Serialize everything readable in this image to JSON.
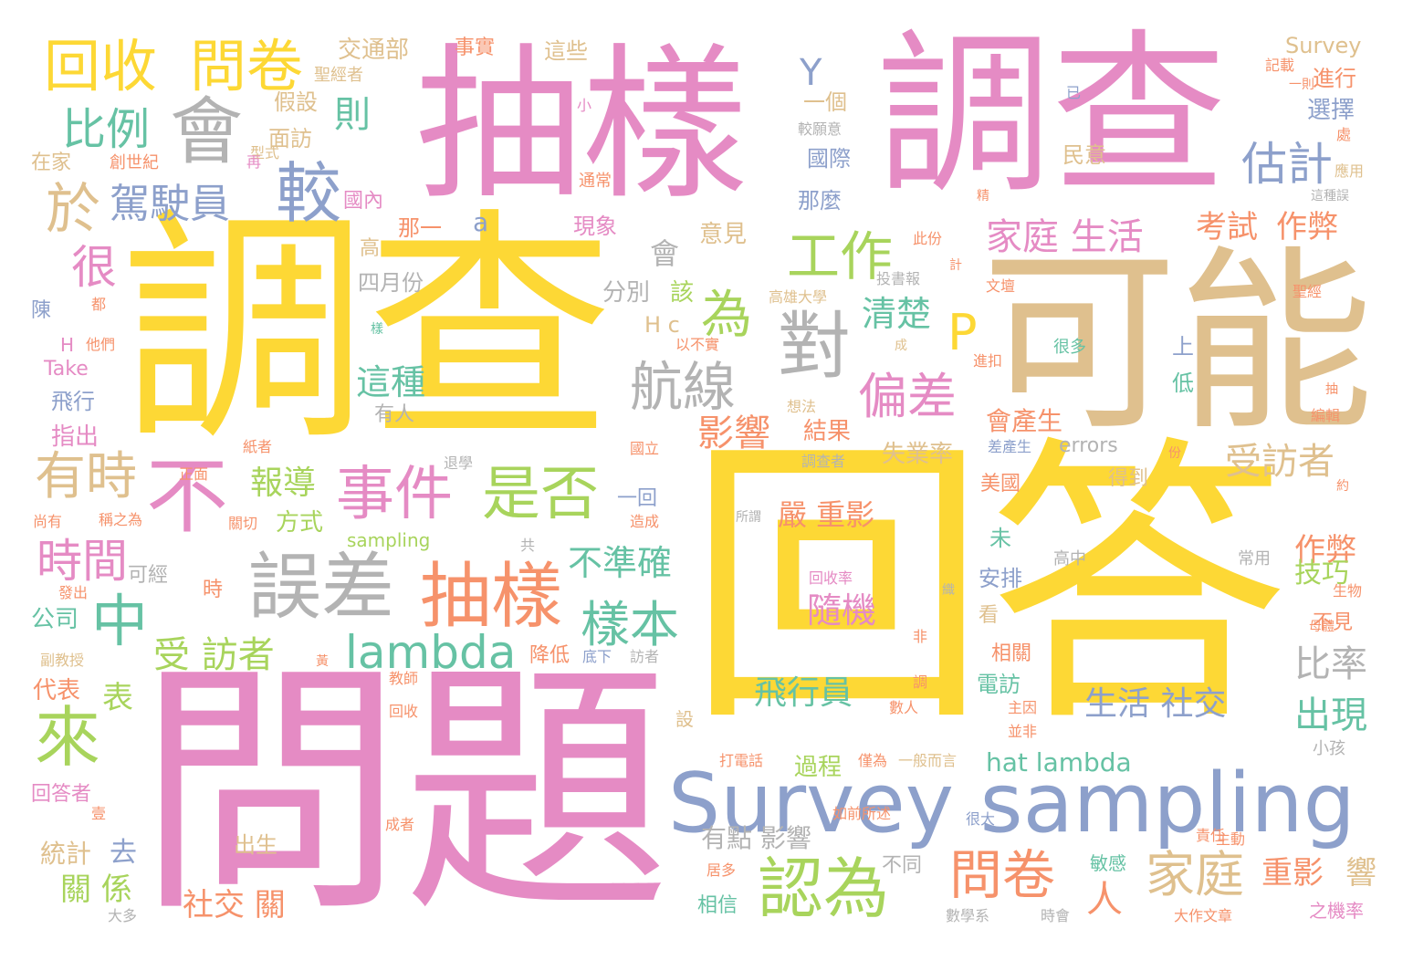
{
  "colors": {
    "pink": "#e58bc4",
    "yellow": "#fdd835",
    "tan": "#dfc08e",
    "orange": "#f6926b",
    "green": "#a8d45c",
    "teal": "#66c2a4",
    "blue": "#8da0cb",
    "gray": "#b3b3b3",
    "background": "#ffffff"
  },
  "words": {
    "w1": "調查",
    "w2": "回答",
    "w3": "問題",
    "w4": "抽樣",
    "w5": "調查",
    "w6": "可能",
    "w7": "Survey sampling",
    "w8": "回收",
    "w9": "問卷",
    "w10": "會",
    "w11": "比例",
    "w12": "駕駛員",
    "w13": "較",
    "w14": "於",
    "w15": "很",
    "w16": "有時",
    "w17": "不",
    "w18": "時間",
    "w19": "中",
    "w20": "來",
    "w21": "誤差",
    "w22": "抽樣",
    "w23": "事件",
    "w24": "是否",
    "w25": "lambda",
    "w26": "受 訪者",
    "w27": "樣本",
    "w28": "工作",
    "w29": "為",
    "w30": "對",
    "w31": "航線",
    "w32": "影響",
    "w33": "偏差",
    "w34": "P",
    "w35": "認為",
    "w36": "問卷",
    "w37": "家庭",
    "w38": "家庭 生活",
    "w39": "估計",
    "w40": "Y",
    "w41": "則",
    "w42": "清楚",
    "w43": "這種",
    "w44": "報導",
    "w45": "不準確",
    "w46": "受訪者",
    "w47": "比率",
    "w48": "出現",
    "w49": "生活 社交",
    "w50": "飛行員",
    "w51": "隨機",
    "w52": "嚴 重影",
    "w53": "hat lambda",
    "w54": "考試",
    "w55": "作弊",
    "w56": "作弊",
    "w57": "技巧",
    "w58": "結果",
    "w59": "會產生",
    "w60": "失業率",
    "w61": "errors",
    "w62": "社交 關",
    "w63": "重影",
    "w64": "響",
    "w65": "人",
    "w66": "有點 影響",
    "w67": "過程",
    "w68": "方式",
    "w69": "表",
    "w70": "關 係",
    "w71": "統計",
    "w72": "去",
    "w73": "回答者",
    "w74": "代表",
    "w75": "公司",
    "w76": "指出",
    "w77": "飛行",
    "w78": "Take",
    "w79": "陳",
    "w80": "H",
    "w81": "他們",
    "w82": "交通部",
    "w83": "聖經者",
    "w84": "假設",
    "w85": "面訪",
    "w86": "型式",
    "w87": "創世紀",
    "w88": "在家",
    "w89": "再",
    "w90": "國內",
    "w91": "那一",
    "w92": "a",
    "w93": "高",
    "w94": "四月份",
    "w95": "分別",
    "w96": "會",
    "w97": "H c",
    "w98": "該",
    "w99": "意見",
    "w100": "現象",
    "w101": "有人",
    "w102": "事實",
    "w103": "這些",
    "w104": "一個",
    "w105": "國際",
    "w106": "那麼",
    "w107": "民意",
    "w108": "Survey",
    "w109": "記載",
    "w110": "進行",
    "w111": "一則",
    "w112": "選擇",
    "w113": "已",
    "w114": "小",
    "w115": "較願意",
    "w116": "通常",
    "w117": "精",
    "w118": "這種誤",
    "w119": "應用",
    "w120": "處",
    "w121": "上",
    "w122": "低",
    "w123": "很多",
    "w124": "文壇",
    "w125": "聖經",
    "w126": "此份",
    "w127": "計",
    "w128": "投書報",
    "w129": "高雄大學",
    "w130": "以不實",
    "w131": "進扣",
    "w132": "成",
    "w133": "想法",
    "w134": "編輯",
    "w135": "抽",
    "w136": "差產生",
    "w137": "國立",
    "w138": "得到",
    "w139": "美國",
    "w140": "一回",
    "w141": "造成",
    "w142": "所謂",
    "w143": "未",
    "w144": "安排",
    "w145": "高中",
    "w146": "常用",
    "w147": "生物",
    "w148": "不見",
    "w149": "母體",
    "w150": "約",
    "w151": "相關",
    "w152": "電訪",
    "w153": "主因",
    "w154": "並非",
    "w155": "小孩",
    "w156": "責任",
    "w157": "主動",
    "w158": "很大",
    "w159": "敏感",
    "w160": "之機率",
    "w161": "大作文章",
    "w162": "時會",
    "w163": "數學系",
    "w164": "相信",
    "w165": "居多",
    "w166": "不同",
    "w167": "打電話",
    "w168": "僅為",
    "w169": "一般而言",
    "w170": "如前所述",
    "w171": "成者",
    "w172": "出生",
    "w173": "大多",
    "w174": "壹",
    "w175": "副教授",
    "w176": "黃",
    "w177": "教師",
    "w178": "回收",
    "w179": "降低",
    "w180": "底下",
    "w181": "訪者",
    "w182": "發出",
    "w183": "可經",
    "w184": "時",
    "w185": "尚有",
    "w186": "稱之為",
    "w187": "關切",
    "w188": "sampling",
    "w189": "共",
    "w190": "正面",
    "w191": "紙者",
    "w192": "退學",
    "w193": "回收率",
    "w194": "調查者",
    "w195": "非",
    "w196": "調",
    "w197": "數人",
    "w198": "設",
    "w199": "看",
    "w200": "份",
    "w201": "都",
    "w202": "樣",
    "w203": "織"
  }
}
